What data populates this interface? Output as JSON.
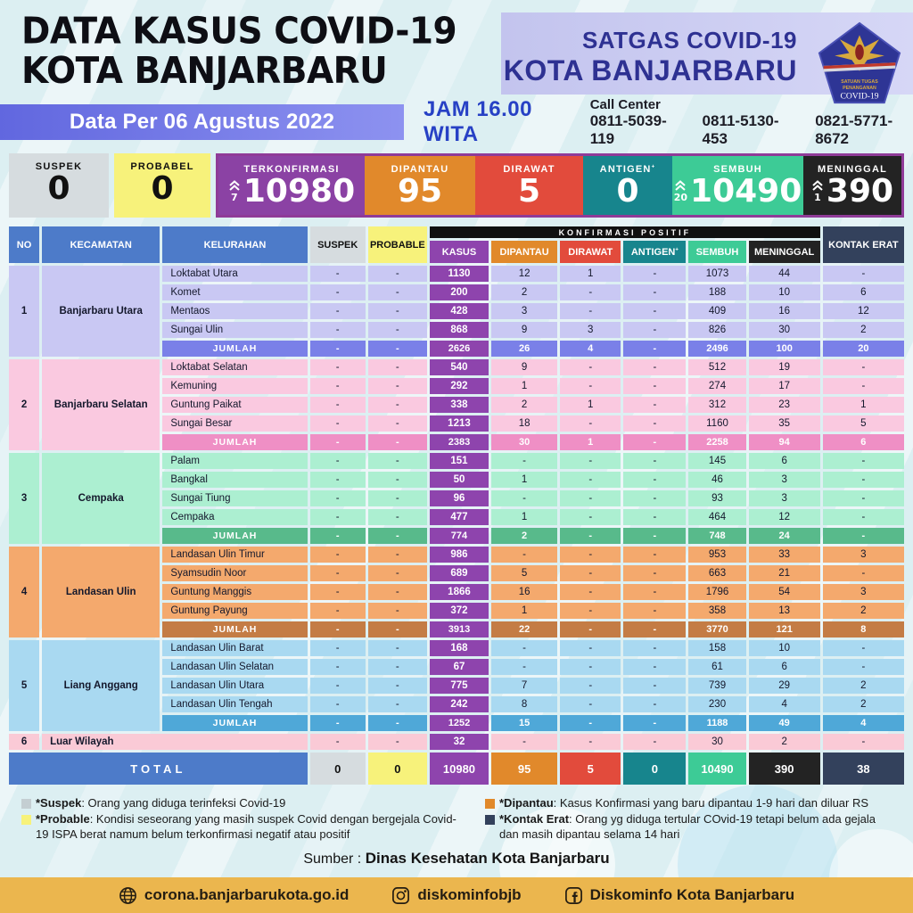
{
  "header": {
    "title_line1": "DATA KASUS COVID-19",
    "title_line2": "KOTA BANJARBARU",
    "org_line1": "SATGAS COVID-19",
    "org_line2": "KOTA BANJARBARU",
    "logo_text_line1": "SATUAN TUGAS",
    "logo_text_line2": "PENANGANAN",
    "logo_text_line3": "COVID-19"
  },
  "infobar": {
    "date_label": "Data Per 06 Agustus 2022",
    "time_label": "JAM 16.00 WITA",
    "call_center_label": "Call Center",
    "phone_1": "0811-5039-119",
    "phone_2": "0811-5130-453",
    "phone_3": "0821-5771-8672"
  },
  "summary": {
    "cards": [
      {
        "label": "SUSPEK",
        "value": "0",
        "color": "#d6dcdf"
      },
      {
        "label": "PROBABEL",
        "value": "0",
        "color": "#f7f27b"
      },
      {
        "label": "TERKONFIRMASI",
        "value": "10980",
        "delta": "7",
        "color": "#8b42a4"
      },
      {
        "label": "DIPANTAU",
        "value": "95",
        "color": "#e1892b"
      },
      {
        "label": "DIRAWAT",
        "value": "5",
        "color": "#e24b3c"
      },
      {
        "label": "ANTIGEN",
        "label_sup": "+",
        "value": "0",
        "color": "#17858d"
      },
      {
        "label": "SEMBUH",
        "value": "10490",
        "delta": "20",
        "color": "#3dcb96"
      },
      {
        "label": "MENINGGAL",
        "value": "390",
        "delta": "1",
        "color": "#232323"
      }
    ]
  },
  "table": {
    "group_header": "KONFIRMASI POSITIF",
    "col_no": "NO",
    "col_kecamatan": "KECAMATAN",
    "col_kelurahan": "KELURAHAN",
    "col_suspek": "SUSPEK",
    "col_probable": "PROBABLE",
    "col_kasus": "KASUS",
    "col_dipantau": "DIPANTAU",
    "col_dirawat": "DIRAWAT",
    "col_antigen": "ANTIGEN",
    "col_antigen_sup": "+",
    "col_sembuh": "SEMBUH",
    "col_meninggal": "MENINGGAL",
    "col_kontak_erat": "KONTAK ERAT",
    "jumlah_label": "JUMLAH",
    "themes": {
      "purple": {
        "cell": "#c9c8f3",
        "jumlah": "#7a80e8"
      },
      "pink": {
        "cell": "#fac9e0",
        "jumlah": "#ef8fc5"
      },
      "mint": {
        "cell": "#acefd1",
        "jumlah": "#58ba8b"
      },
      "orange": {
        "cell": "#f4a96d",
        "jumlah": "#c47c45"
      },
      "blue": {
        "cell": "#a9d9f1",
        "jumlah": "#4fa8d8"
      },
      "luar": {
        "cell": "#facad6"
      },
      "kasus_column": "#8e44ad"
    },
    "groups": [
      {
        "no": "1",
        "name": "Banjarbaru Utara",
        "theme": "purple",
        "rows": [
          {
            "kelurahan": "Loktabat Utara",
            "values": [
              "-",
              "-",
              "1130",
              "12",
              "1",
              "-",
              "1073",
              "44",
              "-"
            ]
          },
          {
            "kelurahan": "Komet",
            "values": [
              "-",
              "-",
              "200",
              "2",
              "-",
              "-",
              "188",
              "10",
              "6"
            ]
          },
          {
            "kelurahan": "Mentaos",
            "values": [
              "-",
              "-",
              "428",
              "3",
              "-",
              "-",
              "409",
              "16",
              "12"
            ]
          },
          {
            "kelurahan": "Sungai Ulin",
            "values": [
              "-",
              "-",
              "868",
              "9",
              "3",
              "-",
              "826",
              "30",
              "2"
            ]
          }
        ],
        "jumlah": [
          "-",
          "-",
          "2626",
          "26",
          "4",
          "-",
          "2496",
          "100",
          "20"
        ]
      },
      {
        "no": "2",
        "name": "Banjarbaru Selatan",
        "theme": "pink",
        "rows": [
          {
            "kelurahan": "Loktabat Selatan",
            "values": [
              "-",
              "-",
              "540",
              "9",
              "-",
              "-",
              "512",
              "19",
              "-"
            ]
          },
          {
            "kelurahan": "Kemuning",
            "values": [
              "-",
              "-",
              "292",
              "1",
              "-",
              "-",
              "274",
              "17",
              "-"
            ]
          },
          {
            "kelurahan": "Guntung Paikat",
            "values": [
              "-",
              "-",
              "338",
              "2",
              "1",
              "-",
              "312",
              "23",
              "1"
            ]
          },
          {
            "kelurahan": "Sungai Besar",
            "values": [
              "-",
              "-",
              "1213",
              "18",
              "-",
              "-",
              "1160",
              "35",
              "5"
            ]
          }
        ],
        "jumlah": [
          "-",
          "-",
          "2383",
          "30",
          "1",
          "-",
          "2258",
          "94",
          "6"
        ]
      },
      {
        "no": "3",
        "name": "Cempaka",
        "theme": "mint",
        "rows": [
          {
            "kelurahan": "Palam",
            "values": [
              "-",
              "-",
              "151",
              "-",
              "-",
              "-",
              "145",
              "6",
              "-"
            ]
          },
          {
            "kelurahan": "Bangkal",
            "values": [
              "-",
              "-",
              "50",
              "1",
              "-",
              "-",
              "46",
              "3",
              "-"
            ]
          },
          {
            "kelurahan": "Sungai Tiung",
            "values": [
              "-",
              "-",
              "96",
              "-",
              "-",
              "-",
              "93",
              "3",
              "-"
            ]
          },
          {
            "kelurahan": "Cempaka",
            "values": [
              "-",
              "-",
              "477",
              "1",
              "-",
              "-",
              "464",
              "12",
              "-"
            ]
          }
        ],
        "jumlah": [
          "-",
          "-",
          "774",
          "2",
          "-",
          "-",
          "748",
          "24",
          "-"
        ]
      },
      {
        "no": "4",
        "name": "Landasan Ulin",
        "theme": "orange",
        "rows": [
          {
            "kelurahan": "Landasan Ulin Timur",
            "values": [
              "-",
              "-",
              "986",
              "-",
              "-",
              "-",
              "953",
              "33",
              "3"
            ]
          },
          {
            "kelurahan": "Syamsudin Noor",
            "values": [
              "-",
              "-",
              "689",
              "5",
              "-",
              "-",
              "663",
              "21",
              "-"
            ]
          },
          {
            "kelurahan": "Guntung Manggis",
            "values": [
              "-",
              "-",
              "1866",
              "16",
              "-",
              "-",
              "1796",
              "54",
              "3"
            ]
          },
          {
            "kelurahan": "Guntung Payung",
            "values": [
              "-",
              "-",
              "372",
              "1",
              "-",
              "-",
              "358",
              "13",
              "2"
            ]
          }
        ],
        "jumlah": [
          "-",
          "-",
          "3913",
          "22",
          "-",
          "-",
          "3770",
          "121",
          "8"
        ]
      },
      {
        "no": "5",
        "name": "Liang Anggang",
        "theme": "blue",
        "rows": [
          {
            "kelurahan": "Landasan Ulin Barat",
            "values": [
              "-",
              "-",
              "168",
              "-",
              "-",
              "-",
              "158",
              "10",
              "-"
            ]
          },
          {
            "kelurahan": "Landasan Ulin Selatan",
            "values": [
              "-",
              "-",
              "67",
              "-",
              "-",
              "-",
              "61",
              "6",
              "-"
            ]
          },
          {
            "kelurahan": "Landasan Ulin Utara",
            "values": [
              "-",
              "-",
              "775",
              "7",
              "-",
              "-",
              "739",
              "29",
              "2"
            ]
          },
          {
            "kelurahan": "Landasan Ulin Tengah",
            "values": [
              "-",
              "-",
              "242",
              "8",
              "-",
              "-",
              "230",
              "4",
              "2"
            ]
          }
        ],
        "jumlah": [
          "-",
          "-",
          "1252",
          "15",
          "-",
          "-",
          "1188",
          "49",
          "4"
        ]
      }
    ],
    "outer_region": {
      "no": "6",
      "name": "Luar Wilayah",
      "values": [
        "-",
        "-",
        "32",
        "-",
        "-",
        "-",
        "30",
        "2",
        "-"
      ]
    },
    "total": {
      "label": "TOTAL",
      "values": [
        "0",
        "0",
        "10980",
        "95",
        "5",
        "0",
        "10490",
        "390",
        "38"
      ]
    }
  },
  "legend": [
    {
      "color": "#c4ced2",
      "term": "*Suspek",
      "text": ": Orang yang diduga terinfeksi Covid-19"
    },
    {
      "color": "#f7f27b",
      "term": "*Probable",
      "text": ": Kondisi seseorang yang masih suspek Covid dengan bergejala Covid-19 ISPA berat namum belum terkonfirmasi negatif atau positif"
    },
    {
      "color": "#e1892b",
      "term": "*Dipantau",
      "text": ": Kasus Konfirmasi yang baru dipantau 1-9 hari dan diluar RS"
    },
    {
      "color": "#33415c",
      "term": "*Kontak Erat",
      "text": ": Orang yg diduga tertular COvid-19 tetapi belum ada gejala dan masih dipantau selama 14 hari"
    }
  ],
  "source": {
    "label": "Sumber :",
    "name": "Dinas Kesehatan Kota Banjarbaru"
  },
  "footer": {
    "website": "corona.banjarbarukota.go.id",
    "instagram": "diskominfobjb",
    "facebook": "Diskominfo Kota Banjarbaru"
  }
}
